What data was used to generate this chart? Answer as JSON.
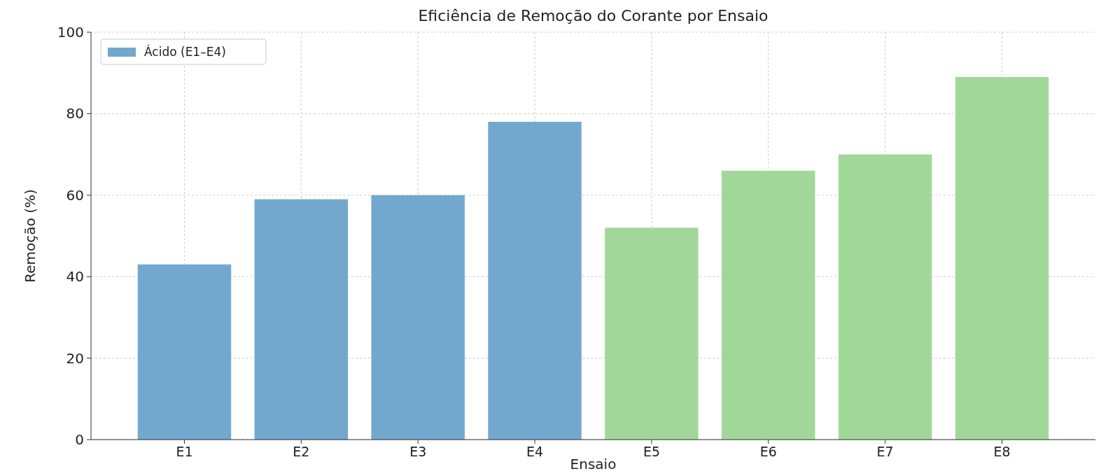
{
  "chart_data": {
    "type": "bar",
    "title": "Eficiência de Remoção do Corante por Ensaio",
    "xlabel": "Ensaio",
    "ylabel": "Remoção (%)",
    "categories": [
      "E1",
      "E2",
      "E3",
      "E4",
      "E5",
      "E6",
      "E7",
      "E8"
    ],
    "series": [
      {
        "name": "Ácido (E1–E4)",
        "color": "#73a8ce",
        "values": [
          43,
          59,
          60,
          78,
          null,
          null,
          null,
          null
        ]
      },
      {
        "color": "#a1d89a",
        "values": [
          null,
          null,
          null,
          null,
          52,
          66,
          70,
          89
        ]
      }
    ],
    "ylim": [
      0,
      100
    ],
    "yticks": [
      0,
      20,
      40,
      60,
      80,
      100
    ],
    "grid": true,
    "legend": "top left"
  }
}
